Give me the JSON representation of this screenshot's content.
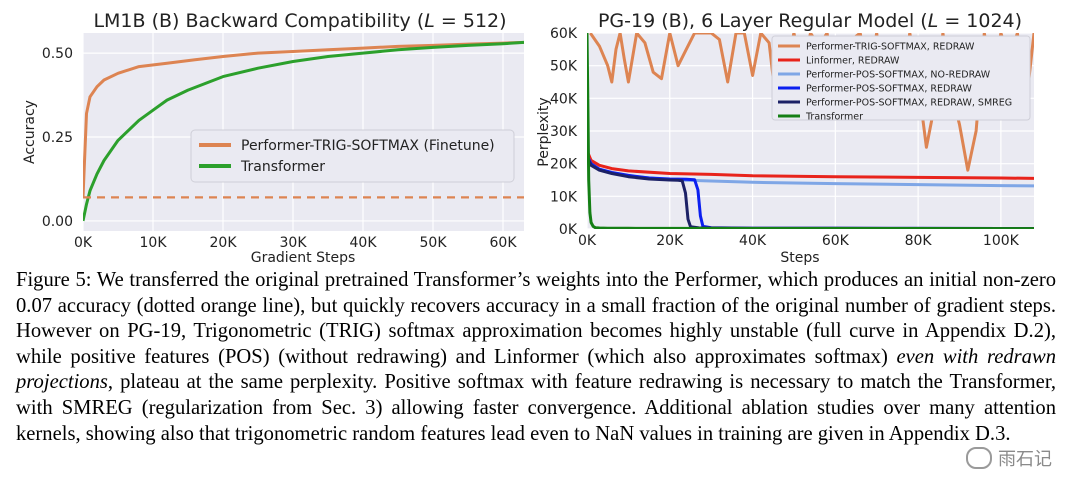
{
  "chart_data": [
    {
      "type": "line",
      "title_text": "LM1B (B) Backward Compatibility (",
      "title_var": "L",
      "title_tail": " = 512)",
      "xlabel": "Gradient Steps",
      "ylabel": "Accuracy",
      "xlim": [
        0,
        63000
      ],
      "ylim": [
        -0.03,
        0.56
      ],
      "xticks": [
        0,
        10000,
        20000,
        30000,
        40000,
        50000,
        60000
      ],
      "xtick_labels": [
        "0K",
        "10K",
        "20K",
        "30K",
        "40K",
        "50K",
        "60K"
      ],
      "yticks": [
        0.0,
        0.25,
        0.5
      ],
      "ytick_labels": [
        "0.00",
        "0.25",
        "0.50"
      ],
      "series": [
        {
          "name": "Performer-TRIG-SOFTMAX (Finetune)",
          "color": "#dd8452",
          "x": [
            0,
            500,
            1000,
            2000,
            3000,
            5000,
            8000,
            12000,
            16000,
            20000,
            25000,
            30000,
            35000,
            40000,
            45000,
            50000,
            55000,
            60000,
            63000
          ],
          "y": [
            0.07,
            0.32,
            0.37,
            0.4,
            0.42,
            0.44,
            0.46,
            0.47,
            0.48,
            0.49,
            0.5,
            0.505,
            0.51,
            0.515,
            0.52,
            0.523,
            0.527,
            0.53,
            0.532
          ]
        },
        {
          "name": "Transformer",
          "color": "#2ca02c",
          "x": [
            0,
            500,
            1000,
            2000,
            3000,
            5000,
            8000,
            10000,
            12000,
            15000,
            20000,
            25000,
            30000,
            35000,
            40000,
            45000,
            50000,
            55000,
            60000,
            63000
          ],
          "y": [
            0.0,
            0.05,
            0.09,
            0.14,
            0.18,
            0.24,
            0.3,
            0.33,
            0.36,
            0.39,
            0.43,
            0.455,
            0.475,
            0.49,
            0.5,
            0.51,
            0.517,
            0.523,
            0.528,
            0.532
          ]
        },
        {
          "name": "Initial accuracy",
          "color": "#dd8452",
          "dashed": true,
          "x": [
            0,
            63000
          ],
          "y": [
            0.07,
            0.07
          ]
        }
      ],
      "legend": [
        "Performer-TRIG-SOFTMAX (Finetune)",
        "Transformer"
      ]
    },
    {
      "type": "line",
      "title_text": "PG-19 (B), 6 Layer Regular Model (",
      "title_var": "L",
      "title_tail": " = 1024)",
      "xlabel": "Steps",
      "ylabel": "Perplexity",
      "xlim": [
        0,
        108000
      ],
      "ylim": [
        0,
        60000
      ],
      "xticks": [
        0,
        20000,
        40000,
        60000,
        80000,
        100000
      ],
      "xtick_labels": [
        "0K",
        "20K",
        "40K",
        "60K",
        "80K",
        "100K"
      ],
      "yticks": [
        0,
        10000,
        20000,
        30000,
        40000,
        50000,
        60000
      ],
      "ytick_labels": [
        "0K",
        "10K",
        "20K",
        "30K",
        "40K",
        "50K",
        "60K"
      ],
      "series": [
        {
          "name": "Performer-TRIG-SOFTMAX, REDRAW",
          "color": "#dd8452",
          "x": [
            800,
            3000,
            5000,
            6000,
            7000,
            8000,
            9000,
            10000,
            12000,
            14000,
            16000,
            18000,
            20000,
            22000,
            24000,
            26000,
            28000,
            30000,
            32000,
            34000,
            36000,
            38000,
            40000,
            42000,
            44000,
            46000,
            48000,
            50000,
            52000,
            54000,
            56000,
            58000,
            60000,
            62000,
            64000,
            66000,
            68000,
            70000,
            72000,
            74000,
            76000,
            78000,
            80000,
            82000,
            84000,
            86000,
            88000,
            90000,
            92000,
            94000,
            96000,
            98000,
            100000,
            102000,
            104000,
            106000,
            108000
          ],
          "y": [
            60000,
            56000,
            50000,
            45000,
            55000,
            60000,
            52000,
            45000,
            60000,
            57000,
            48000,
            46000,
            60000,
            50000,
            55000,
            60000,
            60000,
            60000,
            58000,
            45000,
            60000,
            60000,
            47000,
            60000,
            57000,
            35000,
            48000,
            60000,
            48000,
            60000,
            56000,
            60000,
            40000,
            48000,
            58000,
            60000,
            46000,
            60000,
            36000,
            56000,
            43000,
            60000,
            45000,
            25000,
            38000,
            60000,
            42000,
            32000,
            18000,
            30000,
            60000,
            45000,
            60000,
            52000,
            60000,
            37000,
            60000
          ]
        },
        {
          "name": "Linformer, REDRAW",
          "color": "#e8231b",
          "x": [
            0,
            1000,
            3000,
            6000,
            10000,
            20000,
            30000,
            40000,
            60000,
            80000,
            100000,
            108000
          ],
          "y": [
            24000,
            21000,
            19500,
            18500,
            17800,
            17000,
            16700,
            16300,
            16000,
            15800,
            15600,
            15500
          ]
        },
        {
          "name": "Performer-POS-SOFTMAX, NO-REDRAW",
          "color": "#7fa6e6",
          "x": [
            0,
            1000,
            3000,
            6000,
            10000,
            20000,
            30000,
            40000,
            60000,
            80000,
            100000,
            108000
          ],
          "y": [
            22500,
            20000,
            18300,
            17200,
            16200,
            15100,
            14700,
            14300,
            13900,
            13600,
            13300,
            13200
          ]
        },
        {
          "name": "Performer-POS-SOFTMAX, REDRAW",
          "color": "#0b1ff0",
          "x": [
            0,
            1000,
            3000,
            6000,
            10000,
            15000,
            20000,
            24000,
            26000,
            26800,
            27400,
            28000,
            30000,
            35000,
            40000,
            60000,
            80000,
            100000,
            108000
          ],
          "y": [
            22500,
            20000,
            18300,
            17300,
            16400,
            15600,
            15300,
            15200,
            15100,
            12000,
            4000,
            800,
            400,
            300,
            250,
            200,
            180,
            160,
            150
          ]
        },
        {
          "name": "Performer-POS-SOFTMAX, REDRAW, SMREG",
          "color": "#1c2166",
          "x": [
            0,
            1000,
            3000,
            6000,
            10000,
            15000,
            20000,
            22000,
            23000,
            23800,
            24400,
            25000,
            27000,
            30000,
            40000,
            60000,
            80000,
            100000,
            108000
          ],
          "y": [
            22000,
            19500,
            18000,
            17000,
            16000,
            15300,
            15000,
            14900,
            14800,
            11000,
            3000,
            700,
            350,
            300,
            250,
            200,
            180,
            160,
            150
          ]
        },
        {
          "name": "Transformer",
          "color": "#157f15",
          "x": [
            0,
            200,
            400,
            700,
            1000,
            1500,
            2000,
            3000,
            5000,
            10000,
            20000,
            40000,
            60000,
            80000,
            100000,
            108000
          ],
          "y": [
            60000,
            40000,
            15000,
            5000,
            2000,
            800,
            400,
            300,
            250,
            200,
            180,
            160,
            150,
            140,
            130,
            125
          ]
        }
      ],
      "legend": [
        "Performer-TRIG-SOFTMAX, REDRAW",
        "Linformer, REDRAW",
        "Performer-POS-SOFTMAX, NO-REDRAW",
        "Performer-POS-SOFTMAX, REDRAW",
        "Performer-POS-SOFTMAX, REDRAW, SMREG",
        "Transformer"
      ]
    }
  ],
  "caption": {
    "label": "Figure 5:",
    "part1": " We transferred the original pretrained Transformer’s weights into the Performer, which produces an initial non-zero 0.07 accuracy (dotted orange line), but quickly recovers accuracy in a small fraction of the original number of gradient steps. However on PG-19, Trigonometric (TRIG) softmax approximation becomes highly unstable (full curve in Appendix D.2), while positive features (POS) (without redrawing) and Linformer (which also approximates softmax) ",
    "emph": "even with redrawn projections",
    "part2": ", plateau at the same perplexity. Positive softmax with feature redrawing is necessary to match the Transformer, with SMREG (regularization from Sec. 3) allowing faster convergence. Additional ablation studies over many attention kernels, showing also that trigonometric random features lead even to NaN values in training are given in Appendix D.3."
  },
  "watermark": {
    "text": "雨石记",
    "icon": "wechat-icon"
  }
}
